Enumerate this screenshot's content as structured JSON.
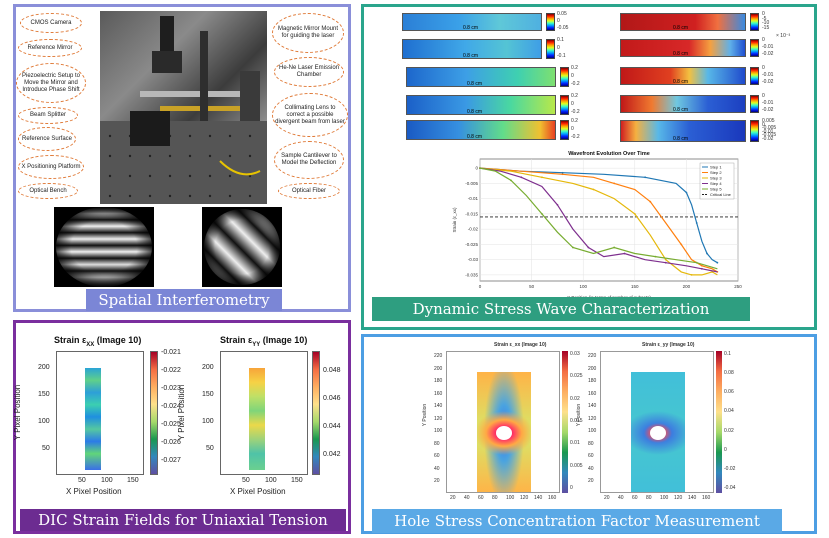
{
  "panels": {
    "interferometry": {
      "banner": "Spatial Interferometry",
      "border_color": "#8a8fd9",
      "banner_color": "#7b86d6",
      "callouts_left": [
        "CMOS Camera",
        "Reference Mirror",
        "Piezoelectric Setup to Move the Mirror and Introduce Phase Shift",
        "Beam Splitter",
        "Reference Surface",
        "X Positioning Platform",
        "Optical Bench"
      ],
      "callouts_right": [
        "Magnetic Mirror Mount for guiding the laser",
        "He-Ne Laser Emission Chamber",
        "Collimating Lens to correct a possible divergent beam from laser",
        "Sample Cantilever to Model the Deflection",
        "Optical Fiber"
      ]
    },
    "stress_wave": {
      "banner": "Dynamic Stress Wave Characterization",
      "border_color": "#2aa58c",
      "banner_color": "#2e9e80",
      "strip_label": "0.8 cm",
      "left_colorbars": [
        [
          "0.05",
          "0",
          "-0.05"
        ],
        [
          "0.1",
          "0",
          "-0.1"
        ],
        [
          "0.2",
          "0",
          "-0.2"
        ],
        [
          "0.2",
          "0",
          "-0.2"
        ],
        [
          "0.2",
          "0",
          "-0.2"
        ]
      ],
      "right_colorbars": [
        [
          "0",
          "-5",
          "-10",
          "-15"
        ],
        [
          "0",
          "-0.01",
          "-0.02"
        ],
        [
          "0",
          "-0.01",
          "-0.02"
        ],
        [
          "0",
          "-0.01",
          "-0.02"
        ],
        [
          "0.005",
          "0",
          "-0.005",
          "-0.01",
          "-0.015",
          "-0.02"
        ]
      ],
      "right_exponent": "× 10⁻³",
      "chart_data": {
        "type": "line",
        "title": "Wavefront Evolution Over Time",
        "xlabel": "X Position (in terms of number of subsets)",
        "ylabel": "Strain (ε_xx)",
        "x_ticks": [
          "0",
          "50",
          "100",
          "150",
          "200",
          "250"
        ],
        "y_ticks": [
          "0",
          "-0.005",
          "-0.01",
          "-0.015",
          "-0.02",
          "-0.025",
          "-0.03",
          "-0.035"
        ],
        "xlim": [
          0,
          250
        ],
        "ylim": [
          -0.037,
          0.003
        ],
        "threshold": -0.016,
        "series": [
          {
            "name": "Step 1",
            "color": "#1f77b4",
            "x": [
              0,
              40,
              80,
              120,
              160,
              190,
              200,
              205,
              210,
              215,
              220,
              225,
              230
            ],
            "y": [
              0,
              -0.001,
              -0.0015,
              -0.002,
              -0.003,
              -0.005,
              -0.008,
              -0.012,
              -0.018,
              -0.024,
              -0.028,
              -0.03,
              -0.031
            ]
          },
          {
            "name": "Step 2",
            "color": "#ff7f0e",
            "x": [
              0,
              40,
              80,
              110,
              130,
              150,
              165,
              180,
              195,
              205,
              215,
              225,
              230
            ],
            "y": [
              0,
              -0.001,
              -0.002,
              -0.003,
              -0.005,
              -0.007,
              -0.011,
              -0.018,
              -0.025,
              -0.03,
              -0.032,
              -0.033,
              -0.034
            ]
          },
          {
            "name": "Step 3",
            "color": "#e5b80b",
            "x": [
              0,
              30,
              60,
              90,
              110,
              130,
              150,
              165,
              180,
              195,
              205,
              215,
              225,
              230
            ],
            "y": [
              0,
              -0.001,
              -0.003,
              -0.005,
              -0.007,
              -0.01,
              -0.015,
              -0.022,
              -0.03,
              -0.034,
              -0.035,
              -0.035,
              -0.034,
              -0.035
            ]
          },
          {
            "name": "Step 4",
            "color": "#7e2f8e",
            "x": [
              0,
              20,
              40,
              60,
              75,
              90,
              105,
              120,
              140,
              160,
              180,
              200,
              215,
              230
            ],
            "y": [
              0,
              -0.001,
              -0.003,
              -0.006,
              -0.012,
              -0.02,
              -0.026,
              -0.029,
              -0.028,
              -0.03,
              -0.031,
              -0.032,
              -0.033,
              -0.034
            ]
          },
          {
            "name": "Step 5",
            "color": "#77ac30",
            "x": [
              0,
              15,
              30,
              45,
              60,
              75,
              90,
              110,
              130,
              150,
              170,
              190,
              210,
              230
            ],
            "y": [
              0,
              -0.001,
              -0.004,
              -0.009,
              -0.015,
              -0.021,
              -0.026,
              -0.028,
              -0.026,
              -0.028,
              -0.029,
              -0.03,
              -0.031,
              -0.033
            ]
          }
        ],
        "legend": [
          "Step 1",
          "Step 2",
          "Step 3",
          "Step 4",
          "Step 5",
          "Critical Line"
        ]
      }
    },
    "dic": {
      "banner": "DIC Strain Fields for Uniaxial Tension",
      "border_color": "#7a2f9e",
      "banner_color": "#6c2c91",
      "plot_xx": {
        "title": "Strain ε",
        "subscript": "XX",
        "title_suffix": " (Image 10)",
        "xlabel": "X Pixel Position",
        "ylabel": "Y Pixel Position",
        "x_ticks": [
          "50",
          "100",
          "150"
        ],
        "y_ticks": [
          "200",
          "150",
          "100",
          "50"
        ],
        "cb_ticks": [
          "-0.021",
          "-0.022",
          "-0.023",
          "-0.024",
          "-0.025",
          "-0.026",
          "-0.027"
        ]
      },
      "plot_yy": {
        "title": "Strain ε",
        "subscript": "YY",
        "title_suffix": " (Image 10)",
        "xlabel": "X Pixel Position",
        "ylabel": "Y Pixel Position",
        "x_ticks": [
          "50",
          "100",
          "150"
        ],
        "y_ticks": [
          "200",
          "150",
          "100",
          "50"
        ],
        "cb_ticks": [
          "0.048",
          "0.046",
          "0.044",
          "0.042"
        ]
      }
    },
    "hole": {
      "banner": "Hole Stress Concentration Factor Measurement",
      "border_color": "#4d9ee3",
      "banner_color": "#5aa9e6",
      "plot_left_title": "Strain ε_xx (Image 10)",
      "plot_right_title": "Strain ε_yy (Image 10)",
      "ylabel": "Y Position",
      "left_cb": [
        "0.03",
        "0.025",
        "0.02",
        "0.015",
        "0.01",
        "0.005",
        "0"
      ],
      "right_cb": [
        "0.1",
        "0.08",
        "0.06",
        "0.04",
        "0.02",
        "0",
        "-0.02",
        "-0.04"
      ],
      "x_ticks": [
        "20",
        "40",
        "60",
        "80",
        "100",
        "120",
        "140",
        "160"
      ],
      "y_ticks": [
        "220",
        "200",
        "180",
        "160",
        "140",
        "120",
        "100",
        "80",
        "60",
        "40",
        "20"
      ]
    }
  }
}
